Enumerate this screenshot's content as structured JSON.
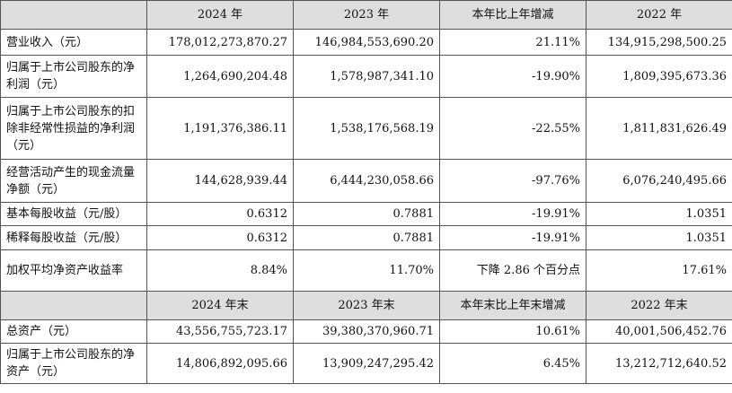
{
  "header1": [
    "",
    "2024 年",
    "2023 年",
    "本年比上年增减",
    "2022 年"
  ],
  "header2": [
    "",
    "2024 年末",
    "2023 年末",
    "本年末比上年末增减",
    "2022 年末"
  ],
  "rows1": [
    {
      "label": "营业收入（元）",
      "v2024": "178,012,273,870.27",
      "v2023": "146,984,553,690.20",
      "change": "21.11%",
      "v2022": "134,915,298,500.25"
    },
    {
      "label": "归属于上市公司股东的净利润（元）",
      "v2024": "1,264,690,204.48",
      "v2023": "1,578,987,341.10",
      "change": "-19.90%",
      "v2022": "1,809,395,673.36"
    },
    {
      "label": "归属于上市公司股东的扣除非经常性损益的净利润（元）",
      "v2024": "1,191,376,386.11",
      "v2023": "1,538,176,568.19",
      "change": "-22.55%",
      "v2022": "1,811,831,626.49"
    },
    {
      "label": "经营活动产生的现金流量净额（元）",
      "v2024": "144,628,939.44",
      "v2023": "6,444,230,058.66",
      "change": "-97.76%",
      "v2022": "6,076,240,495.66"
    },
    {
      "label": "基本每股收益（元/股）",
      "v2024": "0.6312",
      "v2023": "0.7881",
      "change": "-19.91%",
      "v2022": "1.0351"
    },
    {
      "label": "稀释每股收益（元/股）",
      "v2024": "0.6312",
      "v2023": "0.7881",
      "change": "-19.91%",
      "v2022": "1.0351"
    },
    {
      "label": "加权平均净资产收益率",
      "v2024": "8.84%",
      "v2023": "11.70%",
      "change": "下降 2.86 个百分点",
      "v2022": "17.61%"
    }
  ],
  "rows2": [
    {
      "label": "总资产（元）",
      "v2024": "43,556,755,723.17",
      "v2023": "39,380,370,960.71",
      "change": "10.61%",
      "v2022": "40,001,506,452.76"
    },
    {
      "label": "归属于上市公司股东的净资产（元）",
      "v2024": "14,806,892,095.66",
      "v2023": "13,909,247,295.42",
      "change": "6.45%",
      "v2022": "13,212,712,640.52"
    }
  ]
}
